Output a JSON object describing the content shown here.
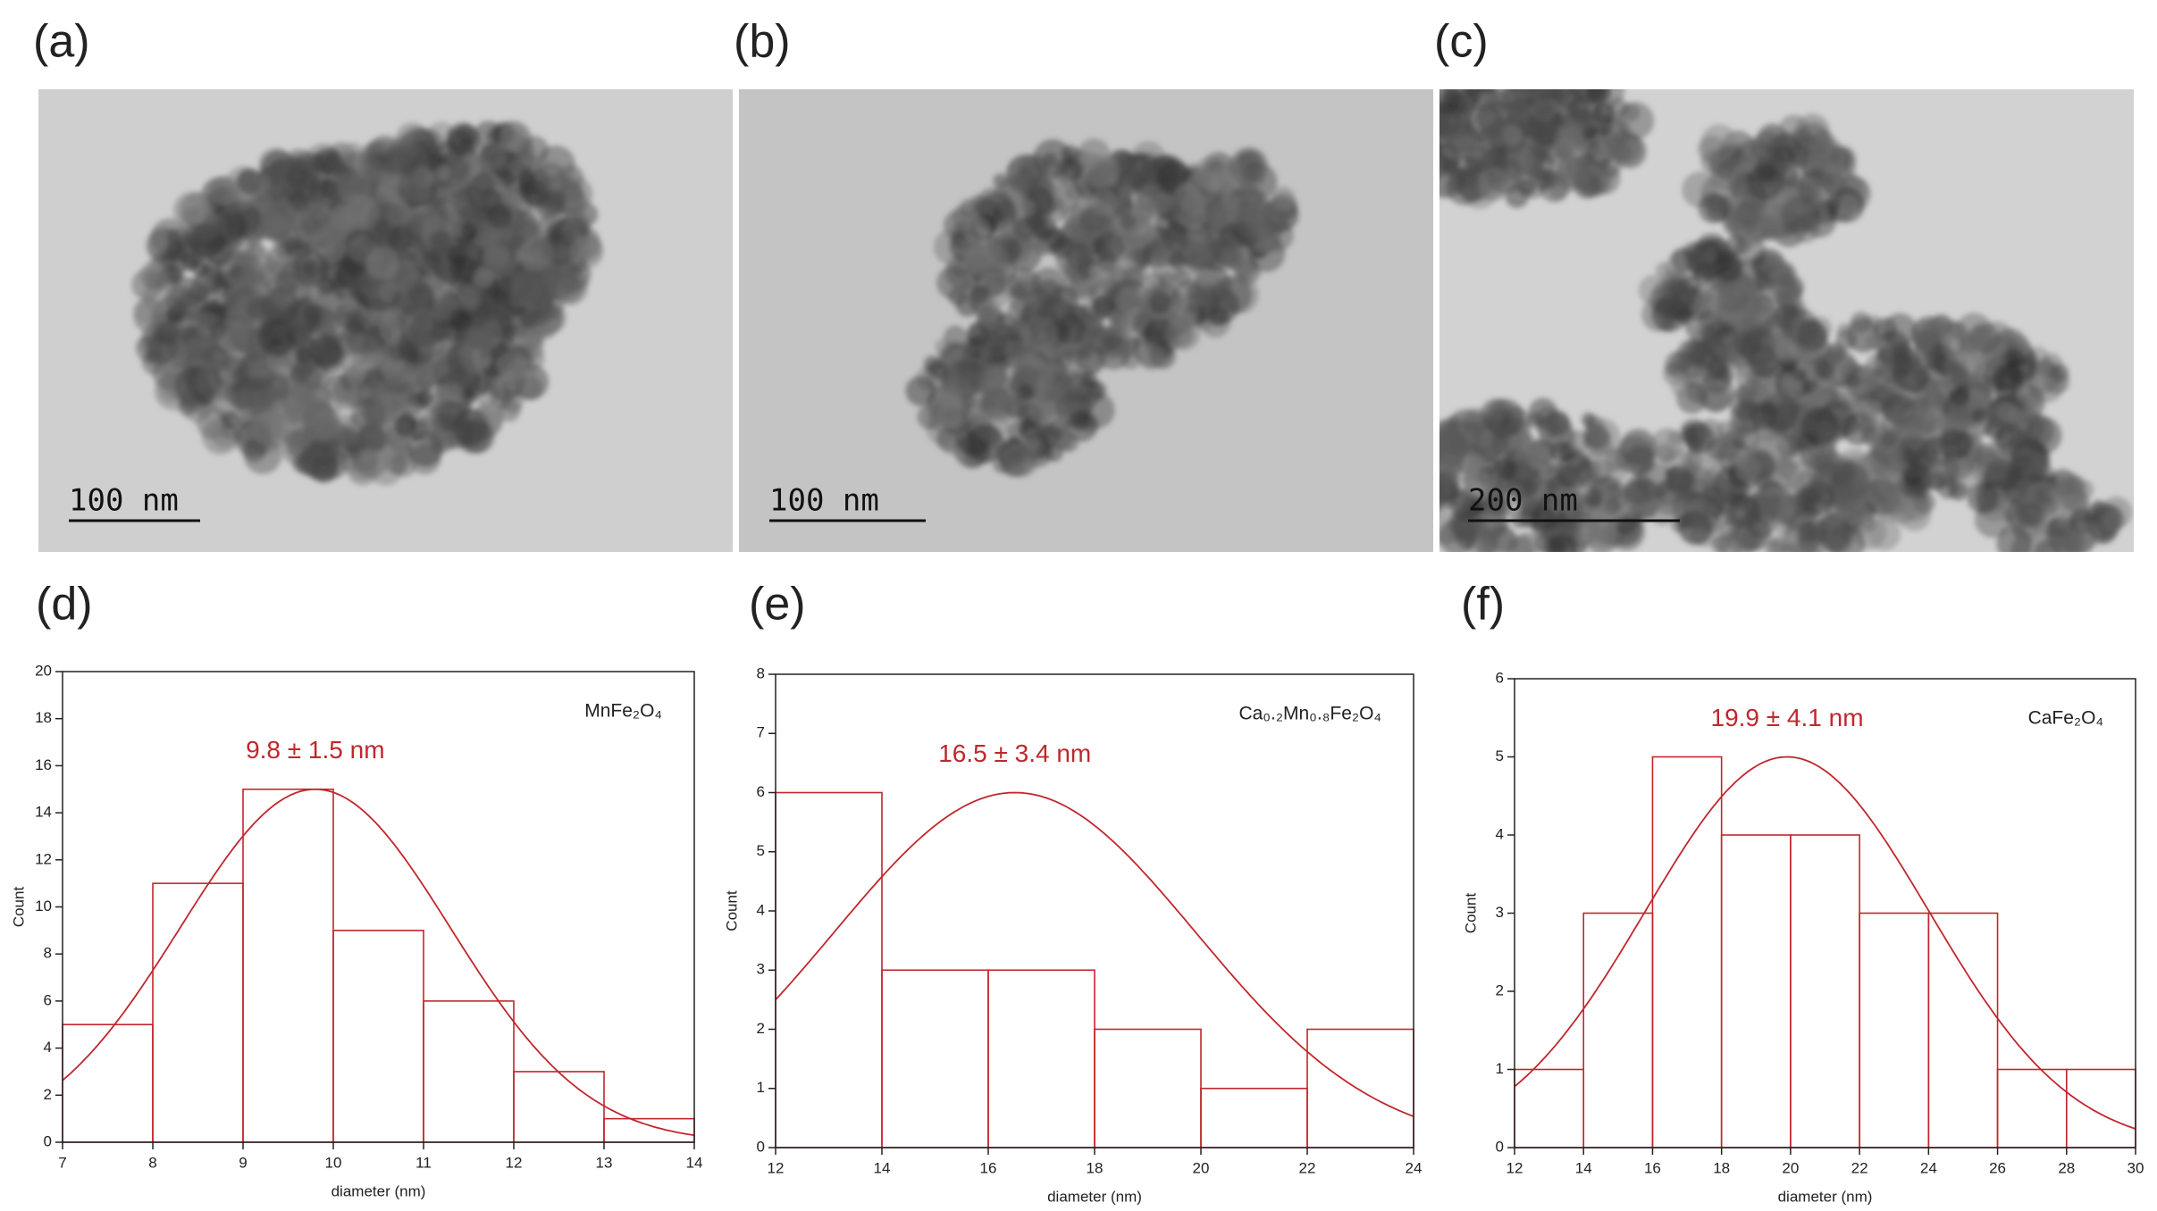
{
  "images": [
    {
      "label": "(a)",
      "scale_bar": "100 nm"
    },
    {
      "label": "(b)",
      "scale_bar": "100 nm"
    },
    {
      "label": "(c)",
      "scale_bar": "200 nm"
    }
  ],
  "chart_data": [
    {
      "type": "histogram",
      "label": "(d)",
      "legend": "MnFe₂O₄",
      "annotation": "9.8 ± 1.5 nm",
      "x_label": "diameter (nm)",
      "y_label": "Count",
      "color": "#c0272d",
      "bins": [
        7,
        8,
        9,
        10,
        11,
        12,
        13,
        14
      ],
      "counts": [
        5,
        11,
        15,
        9,
        6,
        3,
        1
      ],
      "fit": {
        "amplitude": 15,
        "mean": 9.8,
        "sd": 1.5
      },
      "xlim": [
        7,
        14
      ],
      "xticks": [
        7,
        8,
        9,
        10,
        11,
        12,
        13,
        14
      ],
      "ylim": [
        0,
        20
      ],
      "yticks": [
        0,
        2,
        4,
        6,
        8,
        10,
        12,
        14,
        16,
        18,
        20
      ]
    },
    {
      "type": "histogram",
      "label": "(e)",
      "legend": "Ca₀.₂Mn₀.₈Fe₂O₄",
      "annotation": "16.5 ± 3.4 nm",
      "x_label": "diameter (nm)",
      "y_label": "Count",
      "color": "#c0272d",
      "bins": [
        12,
        14,
        16,
        18,
        20,
        22,
        24
      ],
      "counts": [
        6,
        3,
        3,
        2,
        1,
        2
      ],
      "fit": {
        "amplitude": 6,
        "mean": 16.5,
        "sd": 3.4
      },
      "xlim": [
        12,
        24
      ],
      "xticks": [
        12,
        14,
        16,
        18,
        20,
        22,
        24
      ],
      "ylim": [
        0,
        8
      ],
      "yticks": [
        0,
        1,
        2,
        3,
        4,
        5,
        6,
        7,
        8
      ]
    },
    {
      "type": "histogram",
      "label": "(f)",
      "legend": "CaFe₂O₄",
      "annotation": "19.9 ± 4.1 nm",
      "x_label": "diameter (nm)",
      "y_label": "Count",
      "color": "#c0272d",
      "bins": [
        12,
        14,
        16,
        18,
        20,
        22,
        24,
        26,
        28,
        30
      ],
      "counts": [
        1,
        3,
        5,
        4,
        4,
        3,
        3,
        1,
        1
      ],
      "fit": {
        "amplitude": 5,
        "mean": 19.9,
        "sd": 4.1
      },
      "xlim": [
        12,
        30
      ],
      "xticks": [
        12,
        14,
        16,
        18,
        20,
        22,
        24,
        26,
        28,
        30
      ],
      "ylim": [
        0,
        6
      ],
      "yticks": [
        0,
        1,
        2,
        3,
        4,
        5,
        6
      ]
    }
  ]
}
